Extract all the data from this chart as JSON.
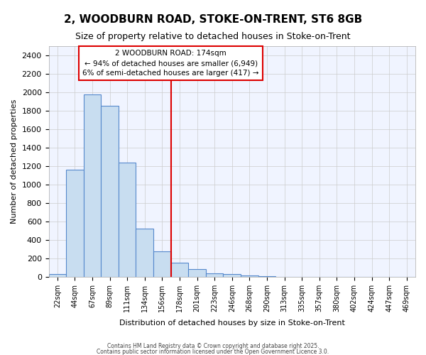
{
  "title": "2, WOODBURN ROAD, STOKE-ON-TRENT, ST6 8GB",
  "subtitle": "Size of property relative to detached houses in Stoke-on-Trent",
  "xlabel": "Distribution of detached houses by size in Stoke-on-Trent",
  "ylabel": "Number of detached properties",
  "bar_color": "#c8ddf0",
  "bar_edge_color": "#5588cc",
  "background_color": "#ffffff",
  "plot_bg_color": "#f0f4ff",
  "grid_color": "#cccccc",
  "annotation_line_color": "#dd0000",
  "annotation_box_edge": "#dd0000",
  "annotation_text_line1": "2 WOODBURN ROAD: 174sqm",
  "annotation_text_line2": "← 94% of detached houses are smaller (6,949)",
  "annotation_text_line3": "6% of semi-detached houses are larger (417) →",
  "property_bin_index": 7,
  "categories": [
    "22sqm",
    "44sqm",
    "67sqm",
    "89sqm",
    "111sqm",
    "134sqm",
    "156sqm",
    "178sqm",
    "201sqm",
    "223sqm",
    "246sqm",
    "268sqm",
    "290sqm",
    "313sqm",
    "335sqm",
    "357sqm",
    "380sqm",
    "402sqm",
    "424sqm",
    "447sqm",
    "469sqm"
  ],
  "values": [
    30,
    1160,
    1975,
    1855,
    1235,
    525,
    275,
    150,
    85,
    40,
    30,
    15,
    5,
    2,
    1,
    0,
    0,
    0,
    0,
    0,
    0
  ],
  "ylim": [
    0,
    2500
  ],
  "yticks": [
    0,
    200,
    400,
    600,
    800,
    1000,
    1200,
    1400,
    1600,
    1800,
    2000,
    2200,
    2400
  ],
  "footer1": "Contains HM Land Registry data © Crown copyright and database right 2025.",
  "footer2": "Contains public sector information licensed under the Open Government Licence 3.0."
}
